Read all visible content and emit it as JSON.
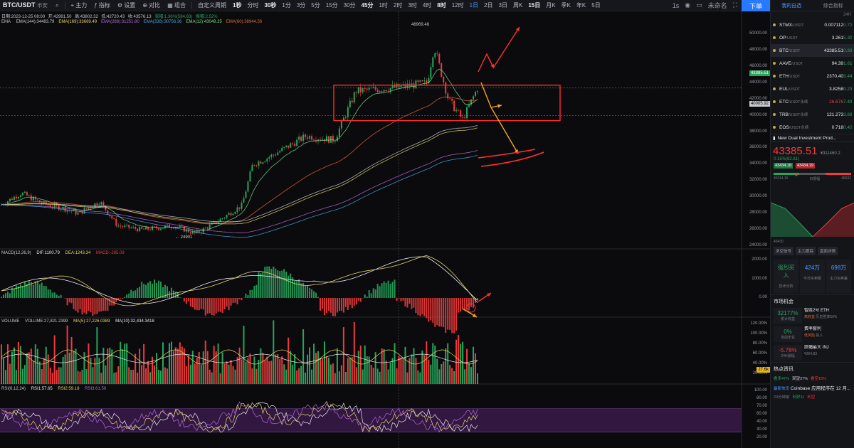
{
  "toolbar": {
    "symbol": "BTC/USDT",
    "symbol_suffix": "币安",
    "menus": [
      "主力",
      "指标",
      "设置",
      "对比",
      "组合"
    ],
    "custom_period": "自定义周期",
    "intervals": [
      "1秒",
      "分时",
      "30秒",
      "1分",
      "3分",
      "5分",
      "15分",
      "30分",
      "45分",
      "1时",
      "2时",
      "3时",
      "4时",
      "8时",
      "12时",
      "1日",
      "2日",
      "3日",
      "周K",
      "15日",
      "月K",
      "季K",
      "年K",
      "5日"
    ],
    "active_intervals": [
      "1秒",
      "30秒",
      "45分",
      "8时",
      "15日"
    ],
    "selected_interval": "1日",
    "right_label": "1s",
    "account_label": "未命名",
    "order_button": "下单"
  },
  "ohlc": {
    "date": "日期:2023-12-25 08:00",
    "open": "开:42991.50",
    "high": "高:43802.32",
    "low": "低:42720.43",
    "close": "收:43576.13",
    "change": "涨幅:1.36%(584.63)",
    "amplitude": "振幅:2.52%"
  },
  "ema_legend": {
    "label": "EMA",
    "items": [
      {
        "text": "EMA(144):34483.79",
        "color": "#c7c9cf"
      },
      {
        "text": "EMA(169):33669.49",
        "color": "#e6d36a"
      },
      {
        "text": "EMA(288):31251.80",
        "color": "#b36ad9"
      },
      {
        "text": "EMA(338):30756.36",
        "color": "#4aa3df"
      },
      {
        "text": "EMA(12):43049.25",
        "color": "#7ddc8a"
      },
      {
        "text": "EMA(60):38944.56",
        "color": "#e0683a"
      }
    ]
  },
  "macd_legend": {
    "label": "MACD(12,26,9)",
    "dif": "DIF:1100.79",
    "dea": "DEA:1243.34",
    "macd": "MACD:-285.09"
  },
  "volume_legend": {
    "label": "VOLUME",
    "volume": "VOLUME:27,821.2399",
    "ma5": "MA(5):27,226.0389",
    "ma10": "MA(10):32,434.3418"
  },
  "rsi_legend": {
    "label": "RSI(6,12,24)",
    "rsi1": "RSI1:57.65",
    "rsi2": "RSI2:59.18",
    "rsi3": "RSI3:61.59"
  },
  "annotations": {
    "high_label": "48969.48",
    "low_label": "24901",
    "current_price_tag": "43385.51",
    "support_price_tag": "40005.92",
    "volume_tag": "27.6k"
  },
  "axes": {
    "price_ticks": [
      "50000.00",
      "48000.00",
      "46000.00",
      "44000.00",
      "42000.00",
      "40000.00",
      "38000.00",
      "36000.00",
      "34000.00",
      "32000.00",
      "30000.00",
      "28000.00",
      "26000.00",
      "24000.00"
    ],
    "macd_ticks": [
      "2000.00",
      "1000.00",
      "0.00"
    ],
    "volume_ticks": [
      "120.00%",
      "100.00%",
      "80.00%",
      "60.00%",
      "40.00%",
      "20.00%"
    ],
    "rsi_ticks": [
      "100.00",
      "80.00",
      "70.00",
      "60.00",
      "40.00",
      "30.00",
      "20.00"
    ]
  },
  "colors": {
    "up": "#26a65b",
    "down": "#ee3b3b",
    "accent": "#2979ff",
    "annotation_box": "#ff2b2b",
    "arrow_red": "#ff3030",
    "arrow_orange": "#f5a623"
  },
  "panel": {
    "tabs": [
      "我的自选",
      "综合指标"
    ],
    "watch_header": "24H",
    "watchlist": [
      {
        "name": "STMX",
        "quote": "/USDT",
        "price": "0.007112",
        "change": "0.72"
      },
      {
        "name": "OP",
        "quote": "/USDT",
        "price": "3.261",
        "change": "5.30"
      },
      {
        "name": "BTC",
        "quote": "/USDT",
        "price": "43385.51",
        "change": "0.89"
      },
      {
        "name": "AAVE",
        "quote": "/USDT",
        "price": "94.39",
        "change": "1.61"
      },
      {
        "name": "ETH",
        "quote": "/USDT",
        "price": "2370.40",
        "change": "3.44"
      },
      {
        "name": "EUL",
        "quote": "/USDT",
        "price": "3.8258",
        "change": "0.23"
      },
      {
        "name": "ETC",
        "quote": "/USDT永续",
        "price": "26.676",
        "change": "7.49"
      },
      {
        "name": "TRB",
        "quote": "/USDT永续",
        "price": "121.273",
        "change": "3.89"
      },
      {
        "name": "EOS",
        "quote": "/USDT永续",
        "price": "0.718",
        "change": "0.42"
      }
    ],
    "news_ticker": "New Dual Investment Prod...",
    "big_price": "43385.51",
    "big_price_cny": "¥311460.2",
    "pct_change": "0.15%(82.81)",
    "bid": "43434.18",
    "ask": "43434.19",
    "depth_low": "40114.15",
    "depth_high": "46632",
    "depth_mid": "日振幅",
    "depth_axis": "43430",
    "buttons": [
      "多空信号",
      "主力跟踪",
      "盘面详情"
    ],
    "stats": [
      {
        "value": "强烈买入",
        "label": "技术分析",
        "color": "#26a65b"
      },
      {
        "value": "424万",
        "label": "今日买卖额",
        "color": "#4d9aff"
      },
      {
        "value": "698万",
        "label": "主力买卖差",
        "color": "#4d9aff"
      }
    ],
    "market_title": "市场机会",
    "opportunities": [
      {
        "value": "32177%",
        "label": "累计收益",
        "title": "智胜2号 ETH",
        "sub": "历史胜率50%",
        "tag": "高收益",
        "color": "#26a65b"
      },
      {
        "value": "0%",
        "label": "当前年化",
        "title": "费率套利",
        "sub": "投入",
        "tag": "低风险",
        "color": "#26a65b"
      },
      {
        "value": "-5.78%",
        "label": "24H涨幅",
        "title": "跌幅最大 INJ",
        "sub": "¥264.83",
        "tag": "",
        "color": "#ee3b3b"
      }
    ],
    "hot_title": "热点资讯",
    "hot_stats": [
      "看多47%",
      "观望37%",
      "看空16%"
    ],
    "news_item": "Coinbase 应用程序在 12 月...",
    "news_time": "23分钟前",
    "news_tags": [
      "利好11",
      "利空"
    ],
    "latest_label": "最新快讯"
  },
  "chart_data": {
    "type": "candlestick",
    "title": "BTC/USDT",
    "price_range": [
      24000,
      50000
    ],
    "high_marker": 48969.48,
    "low_marker": 24901,
    "current_price": 43385.51,
    "support_price": 40005.92,
    "key_points": [
      {
        "date": "2023-12-25",
        "open": 42991.5,
        "high": 43802.32,
        "low": 42720.43,
        "close": 43576.13
      }
    ],
    "ema_values_latest": {
      "EMA144": 34483.79,
      "EMA169": 33669.49,
      "EMA288": 31251.8,
      "EMA338": 30756.36,
      "EMA12": 43049.25,
      "EMA60": 38944.56
    },
    "macd_latest": {
      "DIF": 1100.79,
      "DEA": 1243.34,
      "MACD": -285.09
    },
    "volume_latest": {
      "VOLUME": 27821.2399,
      "MA5": 27226.0389,
      "MA10": 32434.3418
    },
    "rsi_latest": {
      "RSI1": 57.65,
      "RSI2": 59.18,
      "RSI3": 61.59
    },
    "annotation_box_range": [
      40005.92,
      44000
    ]
  }
}
